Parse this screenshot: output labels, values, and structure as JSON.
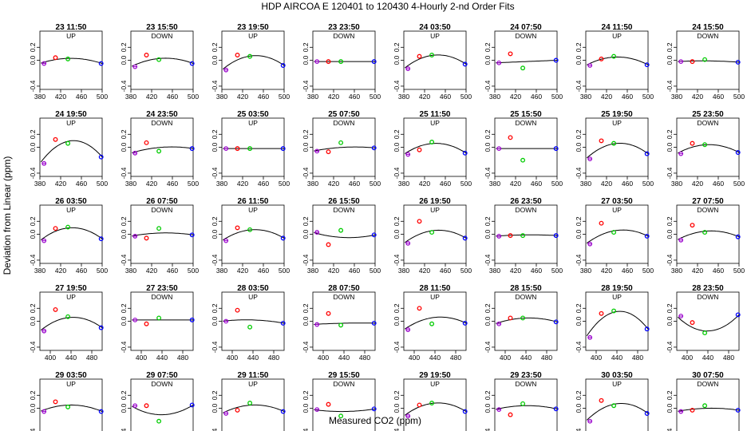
{
  "figure": {
    "title": "HDP    AIRCOA E    120401 to 120430    4-Hourly 2-nd Order Fits",
    "xlabel": "Measured CO2 (ppm)",
    "ylabel": "Deviation from Linear (ppm)",
    "colors": {
      "red": "#ff0000",
      "green": "#00cc00",
      "blue": "#0000ff",
      "purple": "#9900cc",
      "curve": "#000000"
    }
  },
  "chart_data": {
    "type": "scatter",
    "description_of_points": "Each panel shows 4 standards: purple (~388), red (~410), green (~434), blue (~500) with a 2nd-order fit curve.",
    "xticks_a": [
      380,
      420,
      460,
      500
    ],
    "xticks_b": [
      400,
      440,
      480
    ],
    "yticks": [
      -0.4,
      0.0,
      0.2
    ],
    "ylim": [
      -0.45,
      0.45
    ],
    "panels": [
      {
        "title": "23 11:50",
        "dir": "UP",
        "pts": [
          -0.05,
          0.04,
          0.02,
          -0.05
        ],
        "peak": 0.03
      },
      {
        "title": "23 15:50",
        "dir": "DOWN",
        "pts": [
          -0.1,
          0.08,
          0.01,
          -0.05
        ],
        "peak": 0.03
      },
      {
        "title": "23 19:50",
        "dir": "UP",
        "pts": [
          -0.15,
          0.08,
          0.06,
          -0.08
        ],
        "peak": 0.07
      },
      {
        "title": "23 23:50",
        "dir": "DOWN",
        "pts": [
          -0.02,
          -0.02,
          -0.02,
          -0.02
        ],
        "peak": -0.02
      },
      {
        "title": "24 03:50",
        "dir": "UP",
        "pts": [
          -0.13,
          0.06,
          0.08,
          -0.06
        ],
        "peak": 0.08
      },
      {
        "title": "24 07:50",
        "dir": "DOWN",
        "pts": [
          -0.04,
          0.1,
          -0.12,
          0.0
        ],
        "peak": -0.02
      },
      {
        "title": "24 11:50",
        "dir": "UP",
        "pts": [
          -0.08,
          0.02,
          0.06,
          -0.07
        ],
        "peak": 0.05
      },
      {
        "title": "24 15:50",
        "dir": "DOWN",
        "pts": [
          -0.02,
          -0.02,
          0.01,
          -0.03
        ],
        "peak": -0.01
      },
      {
        "title": "24 19:50",
        "dir": "UP",
        "pts": [
          -0.25,
          0.12,
          0.06,
          -0.15
        ],
        "peak": 0.1
      },
      {
        "title": "24 23:50",
        "dir": "DOWN",
        "pts": [
          -0.09,
          0.07,
          -0.06,
          -0.02
        ],
        "peak": 0.0
      },
      {
        "title": "25 03:50",
        "dir": "UP",
        "pts": [
          -0.02,
          -0.02,
          -0.02,
          -0.02
        ],
        "peak": -0.02
      },
      {
        "title": "25 07:50",
        "dir": "DOWN",
        "pts": [
          -0.06,
          -0.07,
          0.07,
          -0.01
        ],
        "peak": 0.0
      },
      {
        "title": "25 11:50",
        "dir": "UP",
        "pts": [
          -0.11,
          -0.04,
          0.08,
          -0.09
        ],
        "peak": 0.06
      },
      {
        "title": "25 15:50",
        "dir": "DOWN",
        "pts": [
          -0.02,
          0.15,
          -0.2,
          -0.02
        ],
        "peak": -0.02
      },
      {
        "title": "25 19:50",
        "dir": "UP",
        "pts": [
          -0.18,
          0.1,
          0.06,
          -0.1
        ],
        "peak": 0.06
      },
      {
        "title": "25 23:50",
        "dir": "DOWN",
        "pts": [
          -0.1,
          0.06,
          0.04,
          -0.08
        ],
        "peak": 0.04
      },
      {
        "title": "26 03:50",
        "dir": "UP",
        "pts": [
          -0.1,
          0.09,
          0.11,
          -0.07
        ],
        "peak": 0.1
      },
      {
        "title": "26 07:50",
        "dir": "DOWN",
        "pts": [
          -0.03,
          -0.06,
          0.09,
          -0.01
        ],
        "peak": 0.02
      },
      {
        "title": "26 11:50",
        "dir": "UP",
        "pts": [
          -0.1,
          0.1,
          0.07,
          -0.06
        ],
        "peak": 0.07
      },
      {
        "title": "26 15:50",
        "dir": "DOWN",
        "pts": [
          0.03,
          -0.16,
          0.06,
          -0.01
        ],
        "peak": -0.05
      },
      {
        "title": "26 19:50",
        "dir": "UP",
        "pts": [
          -0.14,
          0.2,
          0.03,
          -0.06
        ],
        "peak": 0.06
      },
      {
        "title": "26 23:50",
        "dir": "DOWN",
        "pts": [
          -0.03,
          -0.02,
          -0.02,
          -0.02
        ],
        "peak": -0.01
      },
      {
        "title": "27 03:50",
        "dir": "UP",
        "pts": [
          -0.15,
          0.17,
          0.03,
          -0.03
        ],
        "peak": 0.06
      },
      {
        "title": "27 07:50",
        "dir": "DOWN",
        "pts": [
          -0.09,
          0.14,
          0.03,
          -0.04
        ],
        "peak": 0.05
      },
      {
        "title": "27 19:50",
        "dir": "UP",
        "pts": [
          -0.15,
          0.18,
          0.07,
          -0.1
        ],
        "peak": 0.06
      },
      {
        "title": "27 23:50",
        "dir": "DOWN",
        "pts": [
          0.02,
          -0.04,
          0.05,
          0.02
        ],
        "peak": 0.02
      },
      {
        "title": "28 03:50",
        "dir": "UP",
        "pts": [
          0.0,
          0.17,
          -0.09,
          -0.03
        ],
        "peak": 0.02
      },
      {
        "title": "28 07:50",
        "dir": "DOWN",
        "pts": [
          -0.05,
          0.12,
          -0.06,
          -0.03
        ],
        "peak": -0.03
      },
      {
        "title": "28 11:50",
        "dir": "UP",
        "pts": [
          -0.13,
          0.2,
          -0.04,
          -0.03
        ],
        "peak": 0.06
      },
      {
        "title": "28 15:50",
        "dir": "DOWN",
        "pts": [
          -0.04,
          0.05,
          0.05,
          -0.01
        ],
        "peak": 0.05
      },
      {
        "title": "28 19:50",
        "dir": "UP",
        "pts": [
          -0.25,
          0.12,
          0.16,
          -0.12
        ],
        "peak": 0.15
      },
      {
        "title": "28 23:50",
        "dir": "DOWN",
        "pts": [
          0.08,
          -0.02,
          -0.18,
          0.1
        ],
        "peak": -0.15
      },
      {
        "title": "29 03:50",
        "dir": "UP",
        "pts": [
          -0.05,
          0.1,
          0.02,
          -0.05
        ],
        "peak": 0.05
      },
      {
        "title": "29 07:50",
        "dir": "DOWN",
        "pts": [
          0.04,
          0.04,
          -0.2,
          0.05
        ],
        "peak": -0.1
      },
      {
        "title": "29 11:50",
        "dir": "UP",
        "pts": [
          -0.08,
          -0.03,
          0.08,
          -0.05
        ],
        "peak": 0.05
      },
      {
        "title": "29 15:50",
        "dir": "DOWN",
        "pts": [
          -0.02,
          0.06,
          -0.12,
          -0.01
        ],
        "peak": -0.05
      },
      {
        "title": "29 19:50",
        "dir": "UP",
        "pts": [
          -0.12,
          0.05,
          0.08,
          -0.05
        ],
        "peak": 0.08
      },
      {
        "title": "29 23:50",
        "dir": "DOWN",
        "pts": [
          -0.02,
          -0.1,
          0.07,
          -0.01
        ],
        "peak": 0.04
      },
      {
        "title": "30 03:50",
        "dir": "UP",
        "pts": [
          -0.2,
          0.12,
          0.04,
          -0.08
        ],
        "peak": 0.07
      },
      {
        "title": "30 07:50",
        "dir": "DOWN",
        "pts": [
          -0.05,
          -0.03,
          0.04,
          -0.03
        ],
        "peak": 0.0
      }
    ]
  }
}
